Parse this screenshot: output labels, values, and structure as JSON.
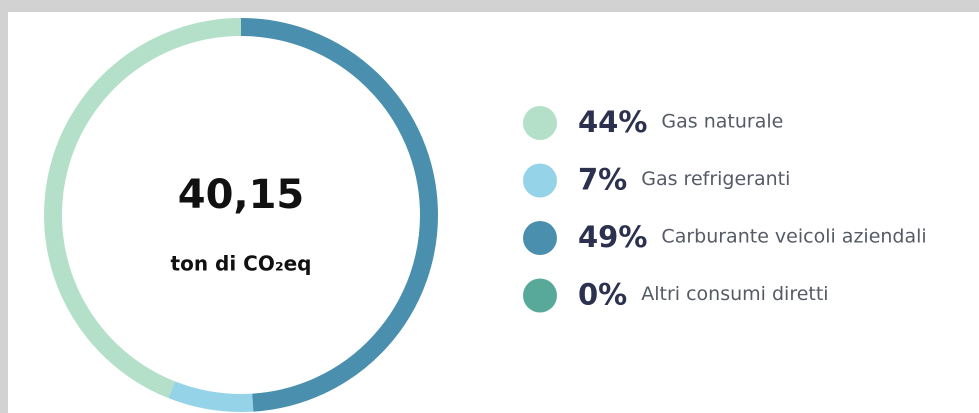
{
  "chart_data": {
    "type": "donut",
    "center_value": "40,15",
    "center_label": "ton di CO₂eq",
    "categories": [
      "Gas naturale",
      "Gas refrigeranti",
      "Carburante veicoli aziendali",
      "Altri consumi diretti"
    ],
    "values": [
      44,
      7,
      49,
      0
    ],
    "value_labels": [
      "44%",
      "7%",
      "49%",
      "0%"
    ],
    "colors": [
      "#b4e0c9",
      "#95d3e8",
      "#4a8fae",
      "#58a99a"
    ],
    "direction": "counterclockwise",
    "legend": "right"
  }
}
